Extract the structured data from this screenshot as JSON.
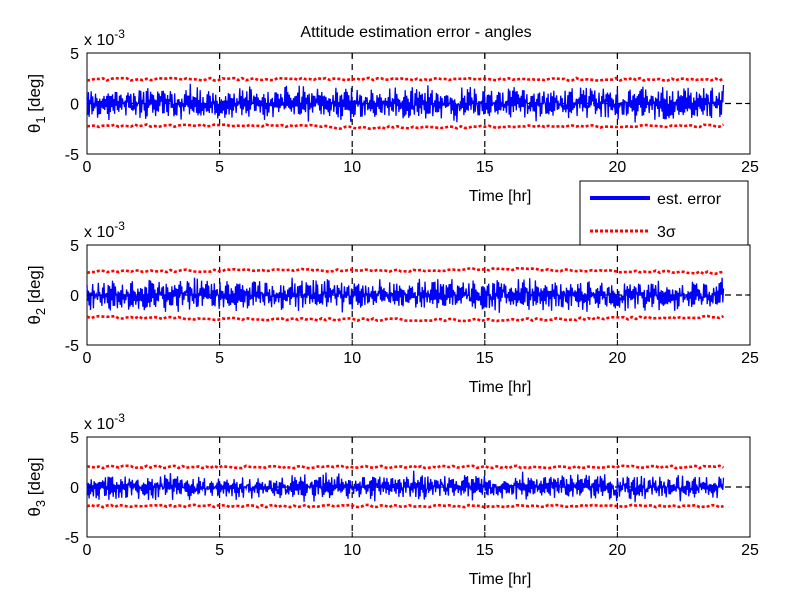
{
  "chart_data": [
    {
      "type": "line",
      "title": "Attitude estimation error - angles",
      "xlabel": "Time [hr]",
      "ylabel_base": "θ",
      "ylabel_sub": "1",
      "ylabel_unit": "[deg]",
      "scale_base": "x 10",
      "scale_exp": "-3",
      "xlim": [
        0,
        25
      ],
      "ylim": [
        -5,
        5
      ],
      "x_ticks": [
        "0",
        "5",
        "10",
        "15",
        "20",
        "25"
      ],
      "y_ticks": [
        "5",
        "0",
        "-5"
      ],
      "x_tick_values": [
        0,
        5,
        10,
        15,
        20,
        25
      ],
      "y_tick_values": [
        5,
        0,
        -5
      ],
      "data_end_hr": 24,
      "series": [
        {
          "name": "est. error",
          "color": "#0000ff",
          "style": "solid",
          "amplitude_approx": 1.8
        },
        {
          "name": "3σ",
          "color": "#ff0000",
          "style": "dotted",
          "upper": [
            [
              0,
              2.4
            ],
            [
              9,
              2.4
            ],
            [
              9,
              2.4
            ],
            [
              24,
              2.4
            ]
          ],
          "lower": [
            [
              0,
              -2.2
            ],
            [
              9,
              -2.2
            ],
            [
              9,
              -2.4
            ],
            [
              24,
              -2.2
            ]
          ]
        }
      ],
      "grid": "vertical dashed at x ticks",
      "zero_line": "dashed"
    },
    {
      "type": "line",
      "title": "",
      "xlabel": "Time [hr]",
      "ylabel_base": "θ",
      "ylabel_sub": "2",
      "ylabel_unit": "[deg]",
      "scale_base": "x 10",
      "scale_exp": "-3",
      "xlim": [
        0,
        25
      ],
      "ylim": [
        -5,
        5
      ],
      "x_ticks": [
        "0",
        "5",
        "10",
        "15",
        "20",
        "25"
      ],
      "y_ticks": [
        "5",
        "0",
        "-5"
      ],
      "x_tick_values": [
        0,
        5,
        10,
        15,
        20,
        25
      ],
      "y_tick_values": [
        5,
        0,
        -5
      ],
      "data_end_hr": 24,
      "series": [
        {
          "name": "est. error",
          "color": "#0000ff",
          "style": "solid",
          "amplitude_approx": 1.7
        },
        {
          "name": "3σ",
          "color": "#ff0000",
          "style": "dotted",
          "upper": [
            [
              0,
              2.3
            ],
            [
              7,
              2.5
            ],
            [
              13,
              2.4
            ],
            [
              15,
              2.6
            ],
            [
              24,
              2.2
            ]
          ],
          "lower": [
            [
              0,
              -2.2
            ],
            [
              6,
              -2.4
            ],
            [
              15,
              -2.5
            ],
            [
              24,
              -2.2
            ]
          ]
        }
      ],
      "grid": "vertical dashed at x ticks",
      "zero_line": "dashed"
    },
    {
      "type": "line",
      "title": "",
      "xlabel": "Time [hr]",
      "ylabel_base": "θ",
      "ylabel_sub": "3",
      "ylabel_unit": "[deg]",
      "scale_base": "x 10",
      "scale_exp": "-3",
      "xlim": [
        0,
        25
      ],
      "ylim": [
        -5,
        5
      ],
      "x_ticks": [
        "0",
        "5",
        "10",
        "15",
        "20",
        "25"
      ],
      "y_ticks": [
        "5",
        "0",
        "-5"
      ],
      "x_tick_values": [
        0,
        5,
        10,
        15,
        20,
        25
      ],
      "y_tick_values": [
        5,
        0,
        -5
      ],
      "data_end_hr": 24,
      "series": [
        {
          "name": "est. error",
          "color": "#0000ff",
          "style": "solid",
          "amplitude_approx": 1.4
        },
        {
          "name": "3σ",
          "color": "#ff0000",
          "style": "dotted",
          "upper": [
            [
              0,
              2.0
            ],
            [
              24,
              2.0
            ]
          ],
          "lower": [
            [
              0,
              -1.9
            ],
            [
              24,
              -1.9
            ]
          ]
        }
      ],
      "grid": "vertical dashed at x ticks",
      "zero_line": "dashed"
    }
  ],
  "legend": {
    "placement": "between plot 1 and plot 2, right",
    "items": [
      {
        "label": "est. error",
        "color": "#0000ff",
        "style": "solid"
      },
      {
        "label": "3σ",
        "label_base": "3",
        "label_symbol": "σ",
        "color": "#ff0000",
        "style": "dotted"
      }
    ]
  }
}
